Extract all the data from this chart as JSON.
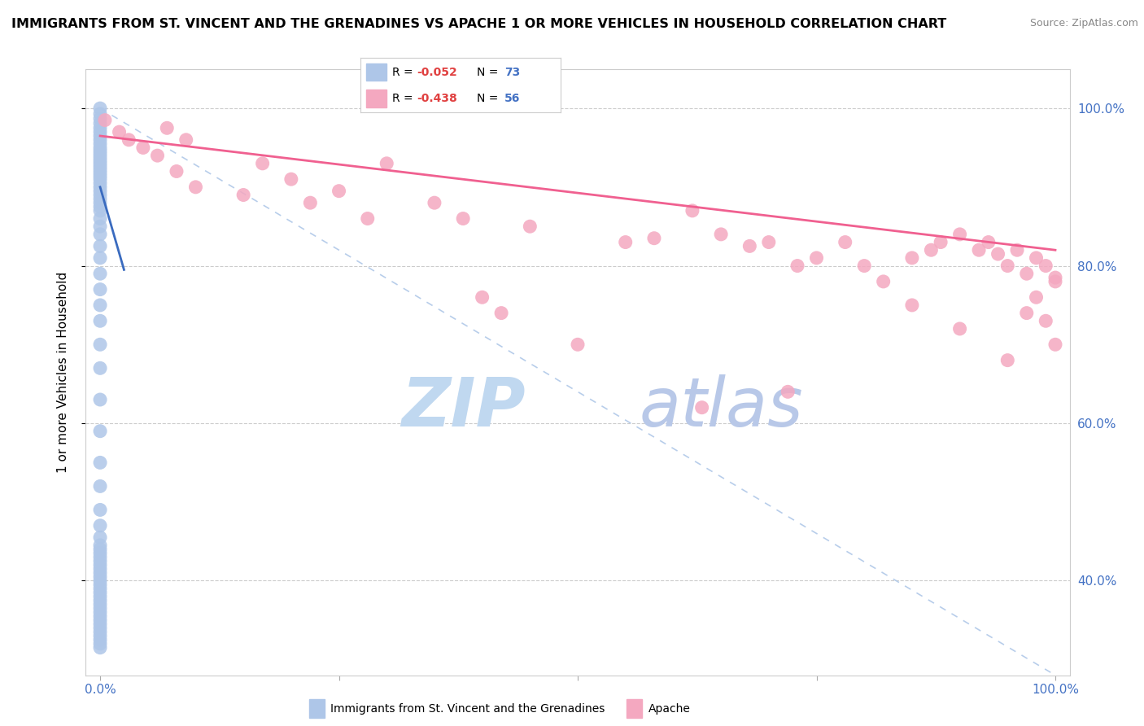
{
  "title": "IMMIGRANTS FROM ST. VINCENT AND THE GRENADINES VS APACHE 1 OR MORE VEHICLES IN HOUSEHOLD CORRELATION CHART",
  "source": "Source: ZipAtlas.com",
  "ylabel": "1 or more Vehicles in Household",
  "legend_blue_label": "Immigrants from St. Vincent and the Grenadines",
  "legend_pink_label": "Apache",
  "legend_blue_R": "R = -0.052",
  "legend_blue_N": "N = 73",
  "legend_pink_R": "R = -0.438",
  "legend_pink_N": "N = 56",
  "blue_color": "#aec6e8",
  "pink_color": "#f4a8c0",
  "blue_line_color": "#3a6bbf",
  "pink_line_color": "#f06090",
  "dash_color": "#b0c8e8",
  "watermark_zip_color": "#c0d8f0",
  "watermark_atlas_color": "#b8c8e8",
  "xlim": [
    0,
    100
  ],
  "ylim": [
    28,
    105
  ],
  "yticks": [
    40,
    60,
    80,
    100
  ],
  "ytick_labels": [
    "40.0%",
    "60.0%",
    "80.0%",
    "100.0%"
  ],
  "blue_scatter_x": [
    0.0,
    0.0,
    0.0,
    0.0,
    0.0,
    0.0,
    0.0,
    0.0,
    0.0,
    0.0,
    0.0,
    0.0,
    0.0,
    0.0,
    0.0,
    0.0,
    0.0,
    0.0,
    0.0,
    0.0,
    0.0,
    0.0,
    0.0,
    0.0,
    0.0,
    0.0,
    0.0,
    0.0,
    0.0,
    0.0,
    0.0,
    0.0,
    0.0,
    0.0,
    0.0,
    0.0,
    0.0,
    0.0,
    0.0,
    0.0,
    0.0,
    0.0,
    0.0,
    0.0,
    0.0,
    0.0,
    0.0,
    0.0,
    0.0,
    0.0,
    0.0,
    0.0,
    0.0,
    0.0,
    0.0,
    0.0,
    0.0,
    0.0,
    0.0,
    0.0,
    0.0,
    0.0,
    0.0,
    0.0,
    0.0,
    0.0,
    0.0,
    0.0,
    0.0,
    0.0,
    0.0,
    0.0,
    0.0
  ],
  "blue_scatter_y": [
    100.0,
    99.3,
    98.7,
    98.1,
    97.5,
    97.0,
    96.5,
    96.0,
    95.5,
    95.0,
    94.6,
    94.2,
    93.8,
    93.4,
    93.0,
    92.6,
    92.2,
    91.8,
    91.4,
    91.0,
    90.5,
    90.0,
    89.5,
    89.0,
    88.5,
    88.0,
    87.5,
    87.0,
    86.0,
    85.0,
    84.0,
    82.5,
    81.0,
    79.0,
    77.0,
    75.0,
    73.0,
    70.0,
    67.0,
    63.0,
    59.0,
    55.0,
    52.0,
    49.0,
    47.0,
    45.5,
    44.5,
    44.0,
    43.5,
    43.0,
    42.5,
    42.0,
    41.5,
    41.0,
    40.5,
    40.0,
    39.5,
    39.0,
    38.5,
    38.0,
    37.5,
    37.0,
    36.5,
    36.0,
    35.5,
    35.0,
    34.5,
    34.0,
    33.5,
    33.0,
    32.5,
    32.0,
    31.5
  ],
  "pink_scatter_x": [
    0.5,
    2.0,
    3.0,
    4.5,
    6.0,
    7.0,
    8.0,
    9.0,
    10.0,
    15.0,
    17.0,
    20.0,
    22.0,
    25.0,
    28.0,
    30.0,
    35.0,
    38.0,
    40.0,
    42.0,
    45.0,
    50.0,
    55.0,
    58.0,
    62.0,
    65.0,
    68.0,
    70.0,
    73.0,
    75.0,
    78.0,
    80.0,
    82.0,
    85.0,
    87.0,
    88.0,
    90.0,
    92.0,
    93.0,
    94.0,
    95.0,
    96.0,
    97.0,
    98.0,
    99.0,
    100.0,
    63.0,
    72.0,
    85.0,
    90.0,
    95.0,
    97.0,
    98.0,
    99.0,
    100.0,
    100.0
  ],
  "pink_scatter_y": [
    98.5,
    97.0,
    96.0,
    95.0,
    94.0,
    97.5,
    92.0,
    96.0,
    90.0,
    89.0,
    93.0,
    91.0,
    88.0,
    89.5,
    86.0,
    93.0,
    88.0,
    86.0,
    76.0,
    74.0,
    85.0,
    70.0,
    83.0,
    83.5,
    87.0,
    84.0,
    82.5,
    83.0,
    80.0,
    81.0,
    83.0,
    80.0,
    78.0,
    81.0,
    82.0,
    83.0,
    84.0,
    82.0,
    83.0,
    81.5,
    80.0,
    82.0,
    79.0,
    81.0,
    80.0,
    78.5,
    62.0,
    64.0,
    75.0,
    72.0,
    68.0,
    74.0,
    76.0,
    73.0,
    70.0,
    78.0
  ],
  "pink_line_x0": 0,
  "pink_line_y0": 96.5,
  "pink_line_x1": 100,
  "pink_line_y1": 82.0,
  "blue_line_x0": 0,
  "blue_line_y0": 90.0,
  "blue_line_x1": 2.5,
  "blue_line_y1": 79.5,
  "dash_line_x0": 0,
  "dash_line_y0": 100,
  "dash_line_x1": 100,
  "dash_line_y1": 28
}
